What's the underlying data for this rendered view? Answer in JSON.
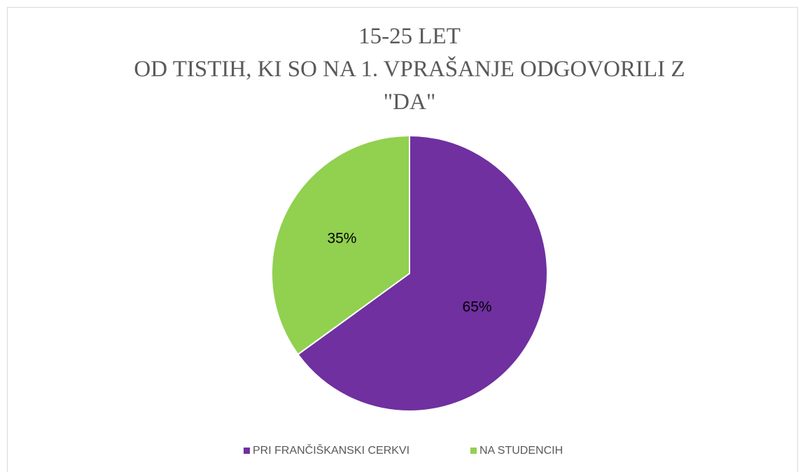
{
  "chart_data": {
    "type": "pie",
    "title": [
      "15-25 LET",
      "OD TISTIH, KI SO NA 1. VPRAŠANJE ODGOVORILI Z",
      "\"DA\""
    ],
    "categories": [
      "PRI FRANČIŠKANSKI CERKVI",
      "NA STUDENCIH"
    ],
    "values": [
      65,
      35
    ],
    "value_labels": [
      "65%",
      "35%"
    ],
    "colors": [
      "#7030a0",
      "#92d050"
    ],
    "legend": "bottom"
  }
}
